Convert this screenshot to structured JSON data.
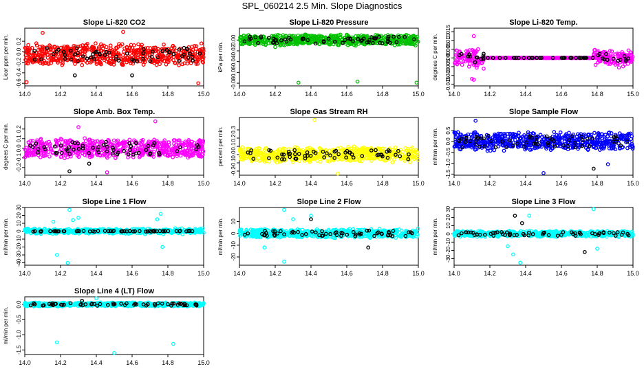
{
  "page": {
    "title": "SPL_060214  2.5 Min. Slope Diagnostics"
  },
  "chart_data": [
    {
      "type": "scatter",
      "title": "Slope Li-820 CO2",
      "ylabel": "Licor ppm per min.",
      "xlim": [
        14.0,
        15.0
      ],
      "ylim": [
        -0.65,
        0.45
      ],
      "xticks": [
        14.0,
        14.2,
        14.4,
        14.6,
        14.8,
        15.0
      ],
      "xtick_labels": [
        "14.0",
        "14.2",
        "14.4",
        "14.6",
        "14.8",
        "15.0"
      ],
      "yticks": [
        -0.6,
        -0.4,
        -0.2,
        0.0,
        0.2
      ],
      "ytick_labels": [
        "-0.6",
        "-0.4",
        "-0.2",
        "0.0",
        "0.2"
      ],
      "color": "#ff0000",
      "profile": "uniform",
      "center": -0.05,
      "spread": 0.22,
      "series": [
        {
          "name": "all points",
          "color": "#ff0000",
          "outliers": [
            {
              "x": 14.01,
              "y": -0.58
            },
            {
              "x": 14.97,
              "y": -0.6
            },
            {
              "x": 14.1,
              "y": 0.36
            },
            {
              "x": 14.55,
              "y": 0.38
            }
          ]
        },
        {
          "name": "selected",
          "color": "#000000",
          "outliers": [
            {
              "x": 14.28,
              "y": -0.45
            },
            {
              "x": 14.6,
              "y": -0.45
            }
          ]
        }
      ]
    },
    {
      "type": "scatter",
      "title": "Slope Li-820 Pressure",
      "ylabel": "kPa per min.",
      "xlim": [
        14.0,
        15.0
      ],
      "ylim": [
        -0.085,
        0.022
      ],
      "xticks": [
        14.0,
        14.2,
        14.4,
        14.6,
        14.8,
        15.0
      ],
      "xtick_labels": [
        "14.0",
        "14.2",
        "14.4",
        "14.6",
        "14.8",
        "15.0"
      ],
      "yticks": [
        -0.08,
        -0.06,
        -0.04,
        -0.02,
        0.0
      ],
      "ytick_labels": [
        "-0.08",
        "-0.06",
        "-0.04",
        "-0.02",
        "0.00"
      ],
      "color": "#00c000",
      "profile": "uniform",
      "center": 0.0,
      "spread": 0.011,
      "series": [
        {
          "name": "all points",
          "color": "#00c000",
          "outliers": [
            {
              "x": 14.2,
              "y": -0.013
            },
            {
              "x": 14.33,
              "y": -0.079
            },
            {
              "x": 14.66,
              "y": -0.077
            },
            {
              "x": 14.99,
              "y": -0.079
            }
          ]
        },
        {
          "name": "selected",
          "color": "#000000",
          "outliers": []
        }
      ]
    },
    {
      "type": "scatter",
      "title": "Slope Li-820 Temp.",
      "ylabel": "degrees C per min.",
      "xlim": [
        14.0,
        15.0
      ],
      "ylim": [
        -0.016,
        0.017
      ],
      "xticks": [
        14.0,
        14.2,
        14.4,
        14.6,
        14.8,
        15.0
      ],
      "xtick_labels": [
        "14.0",
        "14.2",
        "14.4",
        "14.6",
        "14.8",
        "15.0"
      ],
      "yticks": [
        -0.015,
        -0.01,
        -0.005,
        0.0,
        0.005,
        0.01,
        0.015
      ],
      "ytick_labels": [
        "-0.015",
        "-0.010",
        "-0.005",
        "0.000",
        "0.005",
        "0.010",
        "0.015"
      ],
      "color": "#ff00ff",
      "profile": "temp",
      "center": 0.0,
      "spread": 0.004,
      "series": [
        {
          "name": "all points",
          "color": "#ff00ff",
          "outliers": [
            {
              "x": 14.11,
              "y": 0.0125
            },
            {
              "x": 14.1,
              "y": -0.012
            },
            {
              "x": 14.11,
              "y": -0.0125
            }
          ]
        },
        {
          "name": "selected",
          "color": "#000000",
          "outliers": []
        }
      ]
    },
    {
      "type": "scatter",
      "title": "Slope Amb. Box Temp.",
      "ylabel": "degrees C per min.",
      "xlim": [
        14.0,
        15.0
      ],
      "ylim": [
        -0.28,
        0.32
      ],
      "xticks": [
        14.0,
        14.2,
        14.4,
        14.6,
        14.8,
        15.0
      ],
      "xtick_labels": [
        "14.0",
        "14.2",
        "14.4",
        "14.6",
        "14.8",
        "15.0"
      ],
      "yticks": [
        -0.2,
        -0.1,
        0.0,
        0.1,
        0.2
      ],
      "ytick_labels": [
        "-0.2",
        "-0.1",
        "0.0",
        "0.1",
        "0.2"
      ],
      "color": "#ff00ff",
      "profile": "uniform",
      "center": 0.0,
      "spread": 0.11,
      "series": [
        {
          "name": "all points",
          "color": "#ff00ff",
          "outliers": [
            {
              "x": 14.46,
              "y": -0.25
            },
            {
              "x": 14.73,
              "y": 0.28
            },
            {
              "x": 14.3,
              "y": 0.22
            }
          ]
        },
        {
          "name": "selected",
          "color": "#000000",
          "outliers": [
            {
              "x": 14.36,
              "y": -0.16
            },
            {
              "x": 14.25,
              "y": -0.24
            }
          ]
        }
      ]
    },
    {
      "type": "scatter",
      "title": "Slope Gas Stream RH",
      "ylabel": "percent per min.",
      "xlim": [
        14.0,
        15.0
      ],
      "ylim": [
        -0.25,
        0.45
      ],
      "xticks": [
        14.0,
        14.2,
        14.4,
        14.6,
        14.8,
        15.0
      ],
      "xtick_labels": [
        "14.0",
        "14.2",
        "14.4",
        "14.6",
        "14.8",
        "15.0"
      ],
      "yticks": [
        -0.2,
        -0.1,
        0.0,
        0.1,
        0.2,
        0.3
      ],
      "ytick_labels": [
        "-0.2",
        "-0.1",
        "0.0",
        "0.1",
        "0.2",
        "0.3"
      ],
      "color": "#ffff00",
      "profile": "uniform",
      "center": 0.0,
      "spread": 0.1,
      "series": [
        {
          "name": "all points",
          "color": "#ffff00",
          "outliers": [
            {
              "x": 14.42,
              "y": 0.42
            },
            {
              "x": 14.55,
              "y": -0.23
            }
          ]
        },
        {
          "name": "selected",
          "color": "#000000",
          "outliers": []
        }
      ]
    },
    {
      "type": "scatter",
      "title": "Slope Sample Flow",
      "ylabel": "ml/min per min.",
      "xlim": [
        14.0,
        15.0
      ],
      "ylim": [
        -1.55,
        1.1
      ],
      "xticks": [
        14.0,
        14.2,
        14.4,
        14.6,
        14.8,
        15.0
      ],
      "xtick_labels": [
        "14.0",
        "14.2",
        "14.4",
        "14.6",
        "14.8",
        "15.0"
      ],
      "yticks": [
        -1.5,
        -1.0,
        -0.5,
        0.0,
        0.5
      ],
      "ytick_labels": [
        "-1.5",
        "-1.0",
        "-0.5",
        "0.0",
        "0.5"
      ],
      "color": "#0000ff",
      "profile": "uniform",
      "center": 0.0,
      "spread": 0.45,
      "series": [
        {
          "name": "all points",
          "color": "#0000ff",
          "outliers": [
            {
              "x": 14.5,
              "y": -1.45
            },
            {
              "x": 14.86,
              "y": -1.05
            },
            {
              "x": 14.12,
              "y": 0.95
            }
          ]
        },
        {
          "name": "selected",
          "color": "#000000",
          "outliers": [
            {
              "x": 14.78,
              "y": -1.25
            }
          ]
        }
      ]
    },
    {
      "type": "scatter",
      "title": "Slope Line 1 Flow",
      "ylabel": "ml/min per min.",
      "xlim": [
        14.0,
        15.0
      ],
      "ylim": [
        -43,
        30
      ],
      "xticks": [
        14.0,
        14.2,
        14.4,
        14.6,
        14.8,
        15.0
      ],
      "xtick_labels": [
        "14.0",
        "14.2",
        "14.4",
        "14.6",
        "14.8",
        "15.0"
      ],
      "yticks": [
        -40,
        -30,
        -20,
        -10,
        0,
        10,
        20,
        30
      ],
      "ytick_labels": [
        "-40",
        "-30",
        "-20",
        "-10",
        "0",
        "10",
        "20",
        "30"
      ],
      "color": "#00ffff",
      "profile": "flat",
      "center": 0.0,
      "spread": 2.5,
      "series": [
        {
          "name": "all points",
          "color": "#00ffff",
          "outliers": [
            {
              "x": 14.25,
              "y": 27
            },
            {
              "x": 14.18,
              "y": -30
            },
            {
              "x": 14.24,
              "y": -40
            },
            {
              "x": 14.27,
              "y": 14
            },
            {
              "x": 14.3,
              "y": 17
            },
            {
              "x": 14.76,
              "y": 22
            },
            {
              "x": 14.77,
              "y": -20
            },
            {
              "x": 14.74,
              "y": 15
            },
            {
              "x": 14.16,
              "y": 12
            }
          ]
        },
        {
          "name": "selected",
          "color": "#000000",
          "outliers": []
        }
      ]
    },
    {
      "type": "scatter",
      "title": "Slope Line 2 Flow",
      "ylabel": "ml/min per min.",
      "xlim": [
        14.0,
        15.0
      ],
      "ylim": [
        -27,
        22
      ],
      "xticks": [
        14.0,
        14.2,
        14.4,
        14.6,
        14.8,
        15.0
      ],
      "xtick_labels": [
        "14.0",
        "14.2",
        "14.4",
        "14.6",
        "14.8",
        "15.0"
      ],
      "yticks": [
        -20,
        -10,
        0,
        10
      ],
      "ytick_labels": [
        "-20",
        "-10",
        "0",
        "10"
      ],
      "color": "#00ffff",
      "profile": "uniform",
      "center": 0.0,
      "spread": 4,
      "series": [
        {
          "name": "all points",
          "color": "#00ffff",
          "outliers": [
            {
              "x": 14.25,
              "y": 20
            },
            {
              "x": 14.14,
              "y": -12
            },
            {
              "x": 14.25,
              "y": -24
            },
            {
              "x": 14.3,
              "y": 12
            },
            {
              "x": 14.4,
              "y": 15
            }
          ]
        },
        {
          "name": "selected",
          "color": "#000000",
          "outliers": [
            {
              "x": 14.4,
              "y": 12
            },
            {
              "x": 14.72,
              "y": -12
            }
          ]
        }
      ]
    },
    {
      "type": "scatter",
      "title": "Slope Line 3 Flow",
      "ylabel": "ml/min per min.",
      "xlim": [
        14.0,
        15.0
      ],
      "ylim": [
        -38,
        32
      ],
      "xticks": [
        14.0,
        14.2,
        14.4,
        14.6,
        14.8,
        15.0
      ],
      "xtick_labels": [
        "14.0",
        "14.2",
        "14.4",
        "14.6",
        "14.8",
        "15.0"
      ],
      "yticks": [
        -30,
        -20,
        -10,
        0,
        10,
        20,
        30
      ],
      "ytick_labels": [
        "-30",
        "-20",
        "-10",
        "0",
        "10",
        "20",
        "30"
      ],
      "color": "#00ffff",
      "profile": "uniform",
      "center": 0.0,
      "spread": 4,
      "series": [
        {
          "name": "all points",
          "color": "#00ffff",
          "outliers": [
            {
              "x": 14.37,
              "y": -35
            },
            {
              "x": 14.42,
              "y": 22
            },
            {
              "x": 14.3,
              "y": -15
            },
            {
              "x": 14.33,
              "y": -25
            },
            {
              "x": 14.78,
              "y": 30
            },
            {
              "x": 14.8,
              "y": -18
            }
          ]
        },
        {
          "name": "selected",
          "color": "#000000",
          "outliers": [
            {
              "x": 14.34,
              "y": 22
            },
            {
              "x": 14.73,
              "y": -22
            },
            {
              "x": 14.38,
              "y": 13
            }
          ]
        }
      ]
    },
    {
      "type": "scatter",
      "title": "Slope Line 4 (LT) Flow",
      "ylabel": "ml/min per min.",
      "xlim": [
        14.0,
        15.0
      ],
      "ylim": [
        -1.65,
        0.25
      ],
      "xticks": [
        14.0,
        14.2,
        14.4,
        14.6,
        14.8,
        15.0
      ],
      "xtick_labels": [
        "14.0",
        "14.2",
        "14.4",
        "14.6",
        "14.8",
        "15.0"
      ],
      "yticks": [
        -1.5,
        -1.0,
        -0.5,
        0.0
      ],
      "ytick_labels": [
        "-1.5",
        "-1.0",
        "-0.5",
        "0.0"
      ],
      "color": "#00ffff",
      "profile": "uniform",
      "center": 0.0,
      "spread": 0.07,
      "series": [
        {
          "name": "all points",
          "color": "#00ffff",
          "outliers": [
            {
              "x": 14.18,
              "y": -1.25
            },
            {
              "x": 14.5,
              "y": -1.6
            },
            {
              "x": 14.83,
              "y": -1.3
            },
            {
              "x": 14.4,
              "y": 0.2
            }
          ]
        },
        {
          "name": "selected",
          "color": "#000000",
          "outliers": [
            {
              "x": 14.32,
              "y": 0.12
            }
          ]
        }
      ]
    }
  ]
}
